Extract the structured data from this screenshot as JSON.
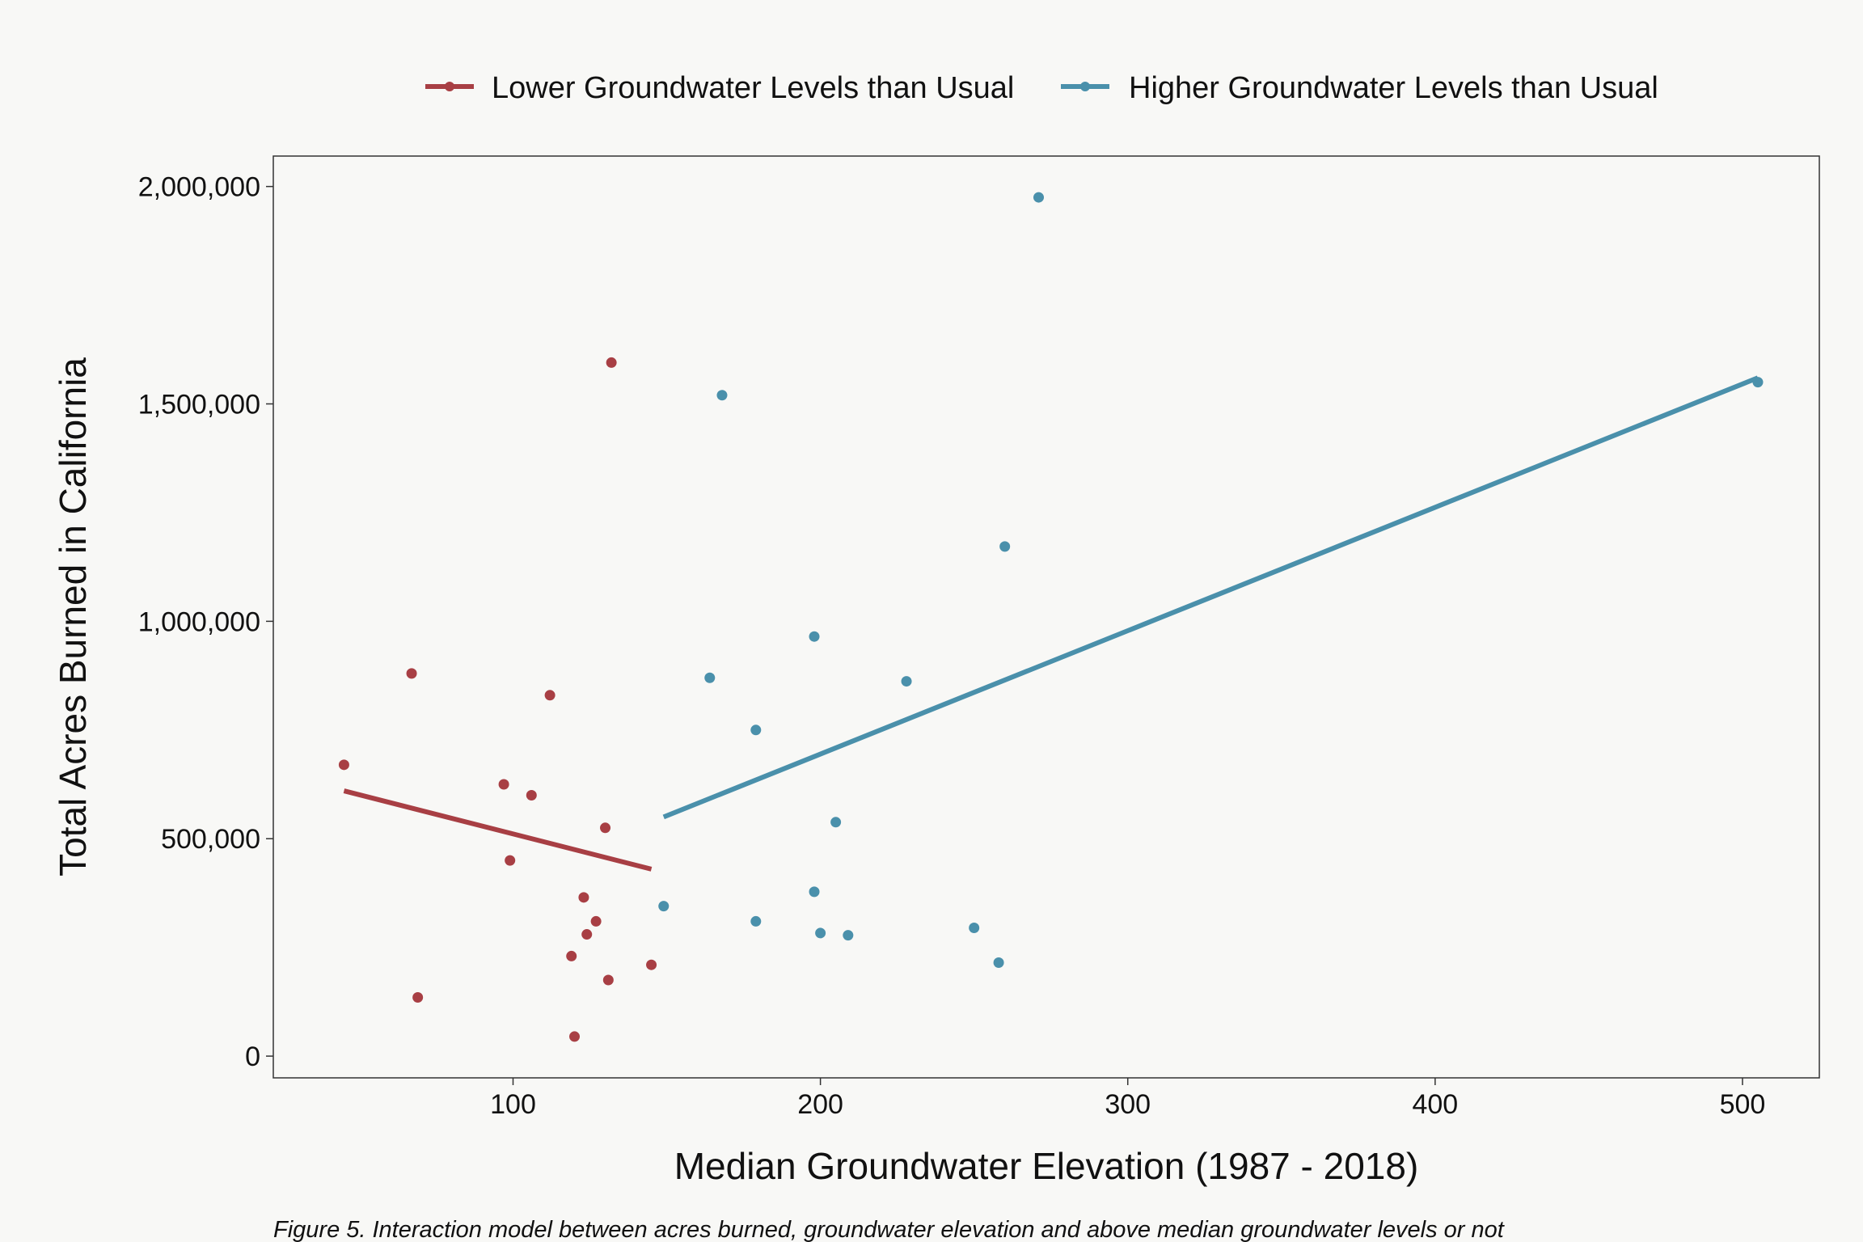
{
  "chart_data": {
    "type": "scatter",
    "xlabel": "Median Groundwater Elevation (1987 - 2018)",
    "ylabel": "Total Acres Burned in California",
    "caption": "Figure 5. Interaction model between acres burned, groundwater elevation and above median groundwater levels or not",
    "xlim": [
      22,
      525
    ],
    "ylim": [
      -50000,
      2070000
    ],
    "xticks": [
      100,
      200,
      300,
      400,
      500
    ],
    "xtick_labels": [
      "100",
      "200",
      "300",
      "400",
      "500"
    ],
    "yticks": [
      0,
      500000,
      1000000,
      1500000,
      2000000
    ],
    "ytick_labels": [
      "0",
      "500,000",
      "1,000,000",
      "1,500,000",
      "2,000,000"
    ],
    "grid": false,
    "legend_position": "top",
    "series": [
      {
        "name": "Lower Groundwater Levels than Usual",
        "color": "#a83f44",
        "points": [
          [
            45,
            670000
          ],
          [
            67,
            880000
          ],
          [
            69,
            135000
          ],
          [
            97,
            625000
          ],
          [
            99,
            450000
          ],
          [
            106,
            600000
          ],
          [
            112,
            830000
          ],
          [
            119,
            230000
          ],
          [
            120,
            45000
          ],
          [
            123,
            365000
          ],
          [
            124,
            280000
          ],
          [
            127,
            310000
          ],
          [
            130,
            525000
          ],
          [
            131,
            175000
          ],
          [
            132,
            1595000
          ],
          [
            145,
            210000
          ]
        ],
        "fit_line": [
          [
            45,
            610000
          ],
          [
            145,
            430000
          ]
        ]
      },
      {
        "name": "Higher Groundwater Levels than Usual",
        "color": "#4a90ab",
        "points": [
          [
            149,
            345000
          ],
          [
            164,
            870000
          ],
          [
            168,
            1520000
          ],
          [
            179,
            750000
          ],
          [
            179,
            310000
          ],
          [
            198,
            965000
          ],
          [
            198,
            378000
          ],
          [
            200,
            283000
          ],
          [
            205,
            538000
          ],
          [
            209,
            278000
          ],
          [
            228,
            862000
          ],
          [
            250,
            295000
          ],
          [
            258,
            215000
          ],
          [
            260,
            1172000
          ],
          [
            271,
            1975000
          ],
          [
            505,
            1550000
          ]
        ],
        "fit_line": [
          [
            149,
            550000
          ],
          [
            505,
            1560000
          ]
        ]
      }
    ]
  }
}
